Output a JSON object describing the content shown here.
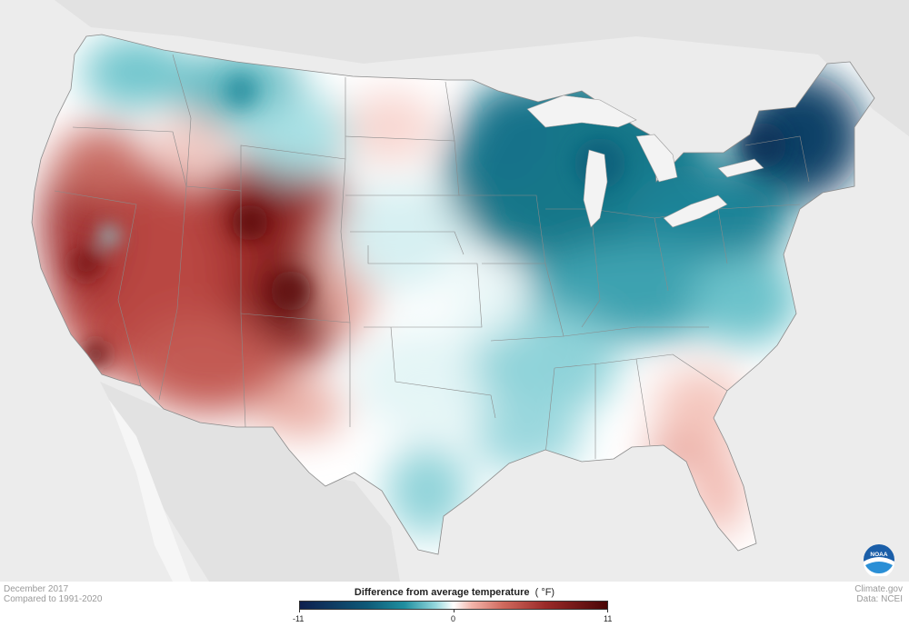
{
  "map": {
    "period": "December 2017",
    "baseline": "Compared to 1991-2020",
    "source_site": "Climate.gov",
    "source_data": "Data: NCEI",
    "legend_title": "Difference from average temperature",
    "legend_unit": "(  °F)",
    "legend_ticks": [
      "-11",
      "0",
      "11"
    ],
    "logo_text": "NOAA",
    "colors": {
      "cold_max": "#0d1f4e",
      "cold_mid": "#1f8f9f",
      "neutral": "#ffffff",
      "warm_mid": "#d06a5e",
      "warm_max": "#4a0606",
      "land_background": "#e4e4e4",
      "water": "#f3f3f3"
    }
  }
}
